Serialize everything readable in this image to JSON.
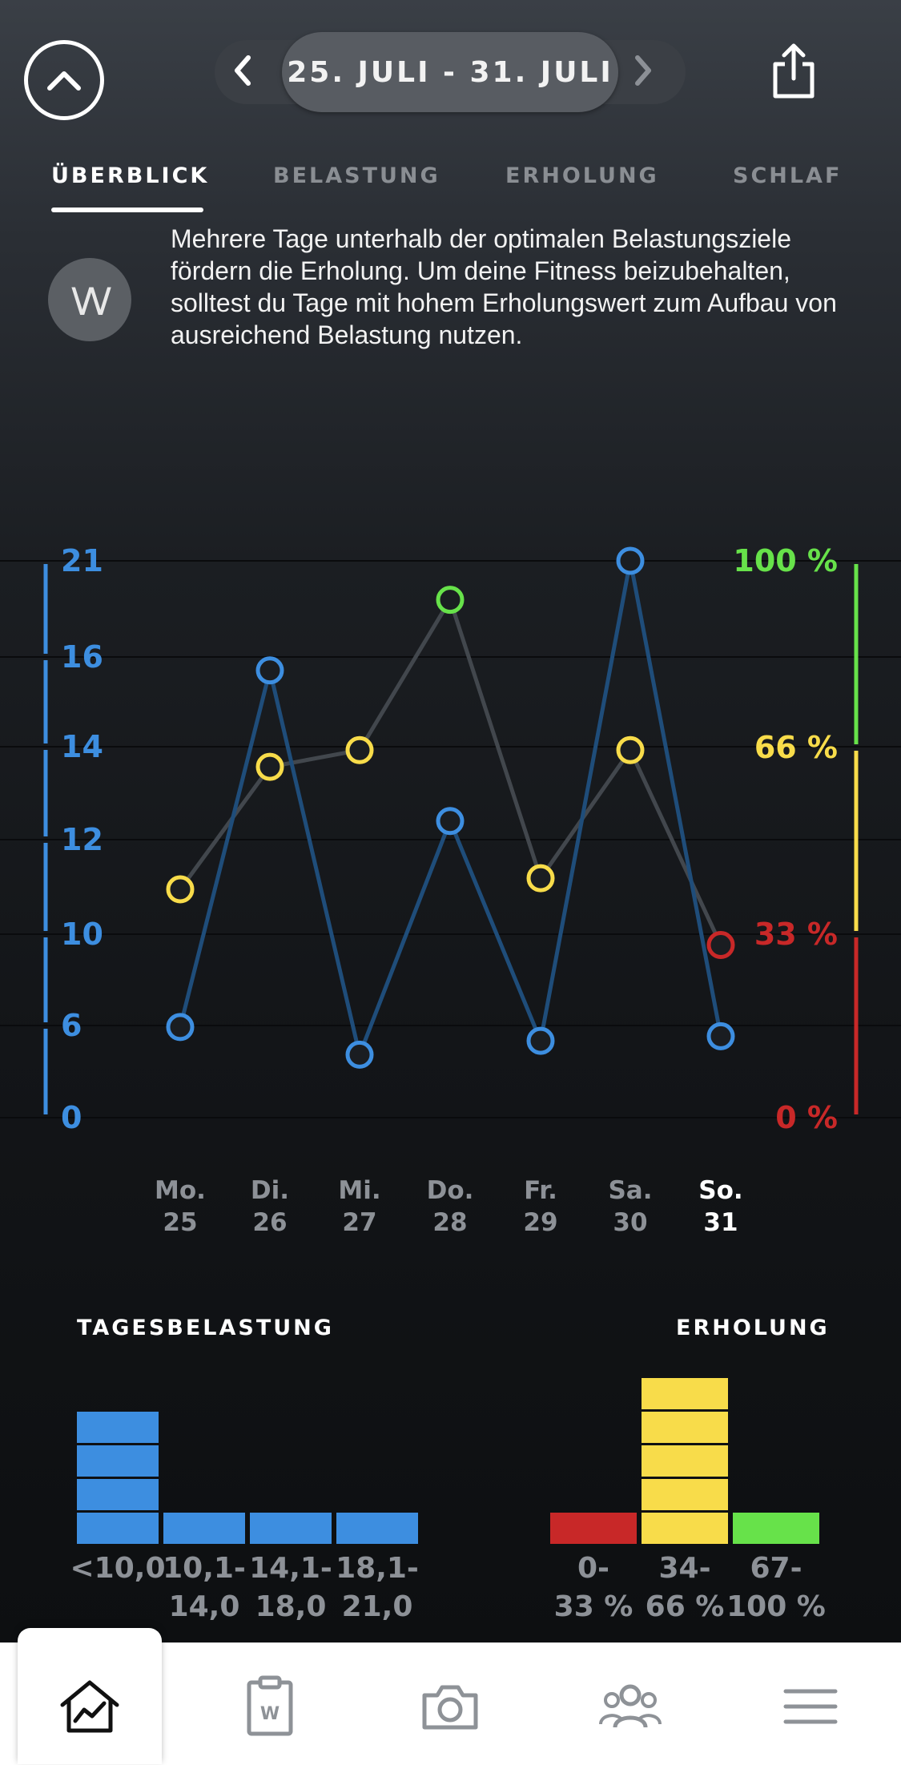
{
  "header": {
    "date_range": "25. JULI - 31. JULI"
  },
  "tabs": [
    {
      "label": "ÜBERBLICK",
      "active": true
    },
    {
      "label": "BELASTUNG",
      "active": false
    },
    {
      "label": "ERHOLUNG",
      "active": false
    },
    {
      "label": "SCHLAF",
      "active": false
    }
  ],
  "insight": {
    "text": "Mehrere Tage unterhalb der optimalen Belastungsziele fördern die Erholung. Um deine Fitness beizubehalten, solltest du Tage mit hohem Erholungswert zum Aufbau von ausreichend Belastung nutzen."
  },
  "colors": {
    "strain_blue": "#3d8ee0",
    "recovery_green": "#67e24a",
    "recovery_yellow": "#f8dc4a",
    "recovery_red": "#c82828"
  },
  "chart_data": {
    "type": "line",
    "categories": [
      "Mo. 25",
      "Di. 26",
      "Mi. 27",
      "Do. 28",
      "Fr. 29",
      "Sa. 30",
      "So. 31"
    ],
    "left_axis_ticks": [
      "21",
      "16",
      "14",
      "12",
      "10",
      "6",
      "0"
    ],
    "right_axis_ticks": [
      "100 %",
      "66 %",
      "33 %",
      "0 %"
    ],
    "series": [
      {
        "values": [
          5.9,
          15.7,
          4.1,
          12.4,
          5.0,
          21.0,
          5.3
        ]
      },
      {
        "values": [
          41,
          63,
          66,
          93,
          43,
          66,
          31
        ]
      }
    ]
  },
  "days": [
    {
      "weekday": "Mo.",
      "date": "25"
    },
    {
      "weekday": "Di.",
      "date": "26"
    },
    {
      "weekday": "Mi.",
      "date": "27"
    },
    {
      "weekday": "Do.",
      "date": "28"
    },
    {
      "weekday": "Fr.",
      "date": "29"
    },
    {
      "weekday": "Sa.",
      "date": "30"
    },
    {
      "weekday": "So.",
      "date": "31",
      "current": true
    }
  ],
  "strain_histogram": {
    "title": "TAGESBELASTUNG",
    "bins": [
      {
        "line1": "<10,0",
        "line2": "",
        "count": 4
      },
      {
        "line1": "10,1-",
        "line2": "14,0",
        "count": 1
      },
      {
        "line1": "14,1-",
        "line2": "18,0",
        "count": 1
      },
      {
        "line1": "18,1-",
        "line2": "21,0",
        "count": 1
      }
    ]
  },
  "recovery_histogram": {
    "title": "ERHOLUNG",
    "bins": [
      {
        "line1": "0-",
        "line2": "33 %",
        "count": 1,
        "color": "#c82828"
      },
      {
        "line1": "34-",
        "line2": "66 %",
        "count": 5,
        "color": "#f8dc4a"
      },
      {
        "line1": "67-",
        "line2": "100 %",
        "count": 1,
        "color": "#67e24a"
      }
    ]
  },
  "nav": [
    {
      "name": "home-icon"
    },
    {
      "name": "journal-icon"
    },
    {
      "name": "camera-icon"
    },
    {
      "name": "team-icon"
    },
    {
      "name": "menu-icon"
    }
  ]
}
